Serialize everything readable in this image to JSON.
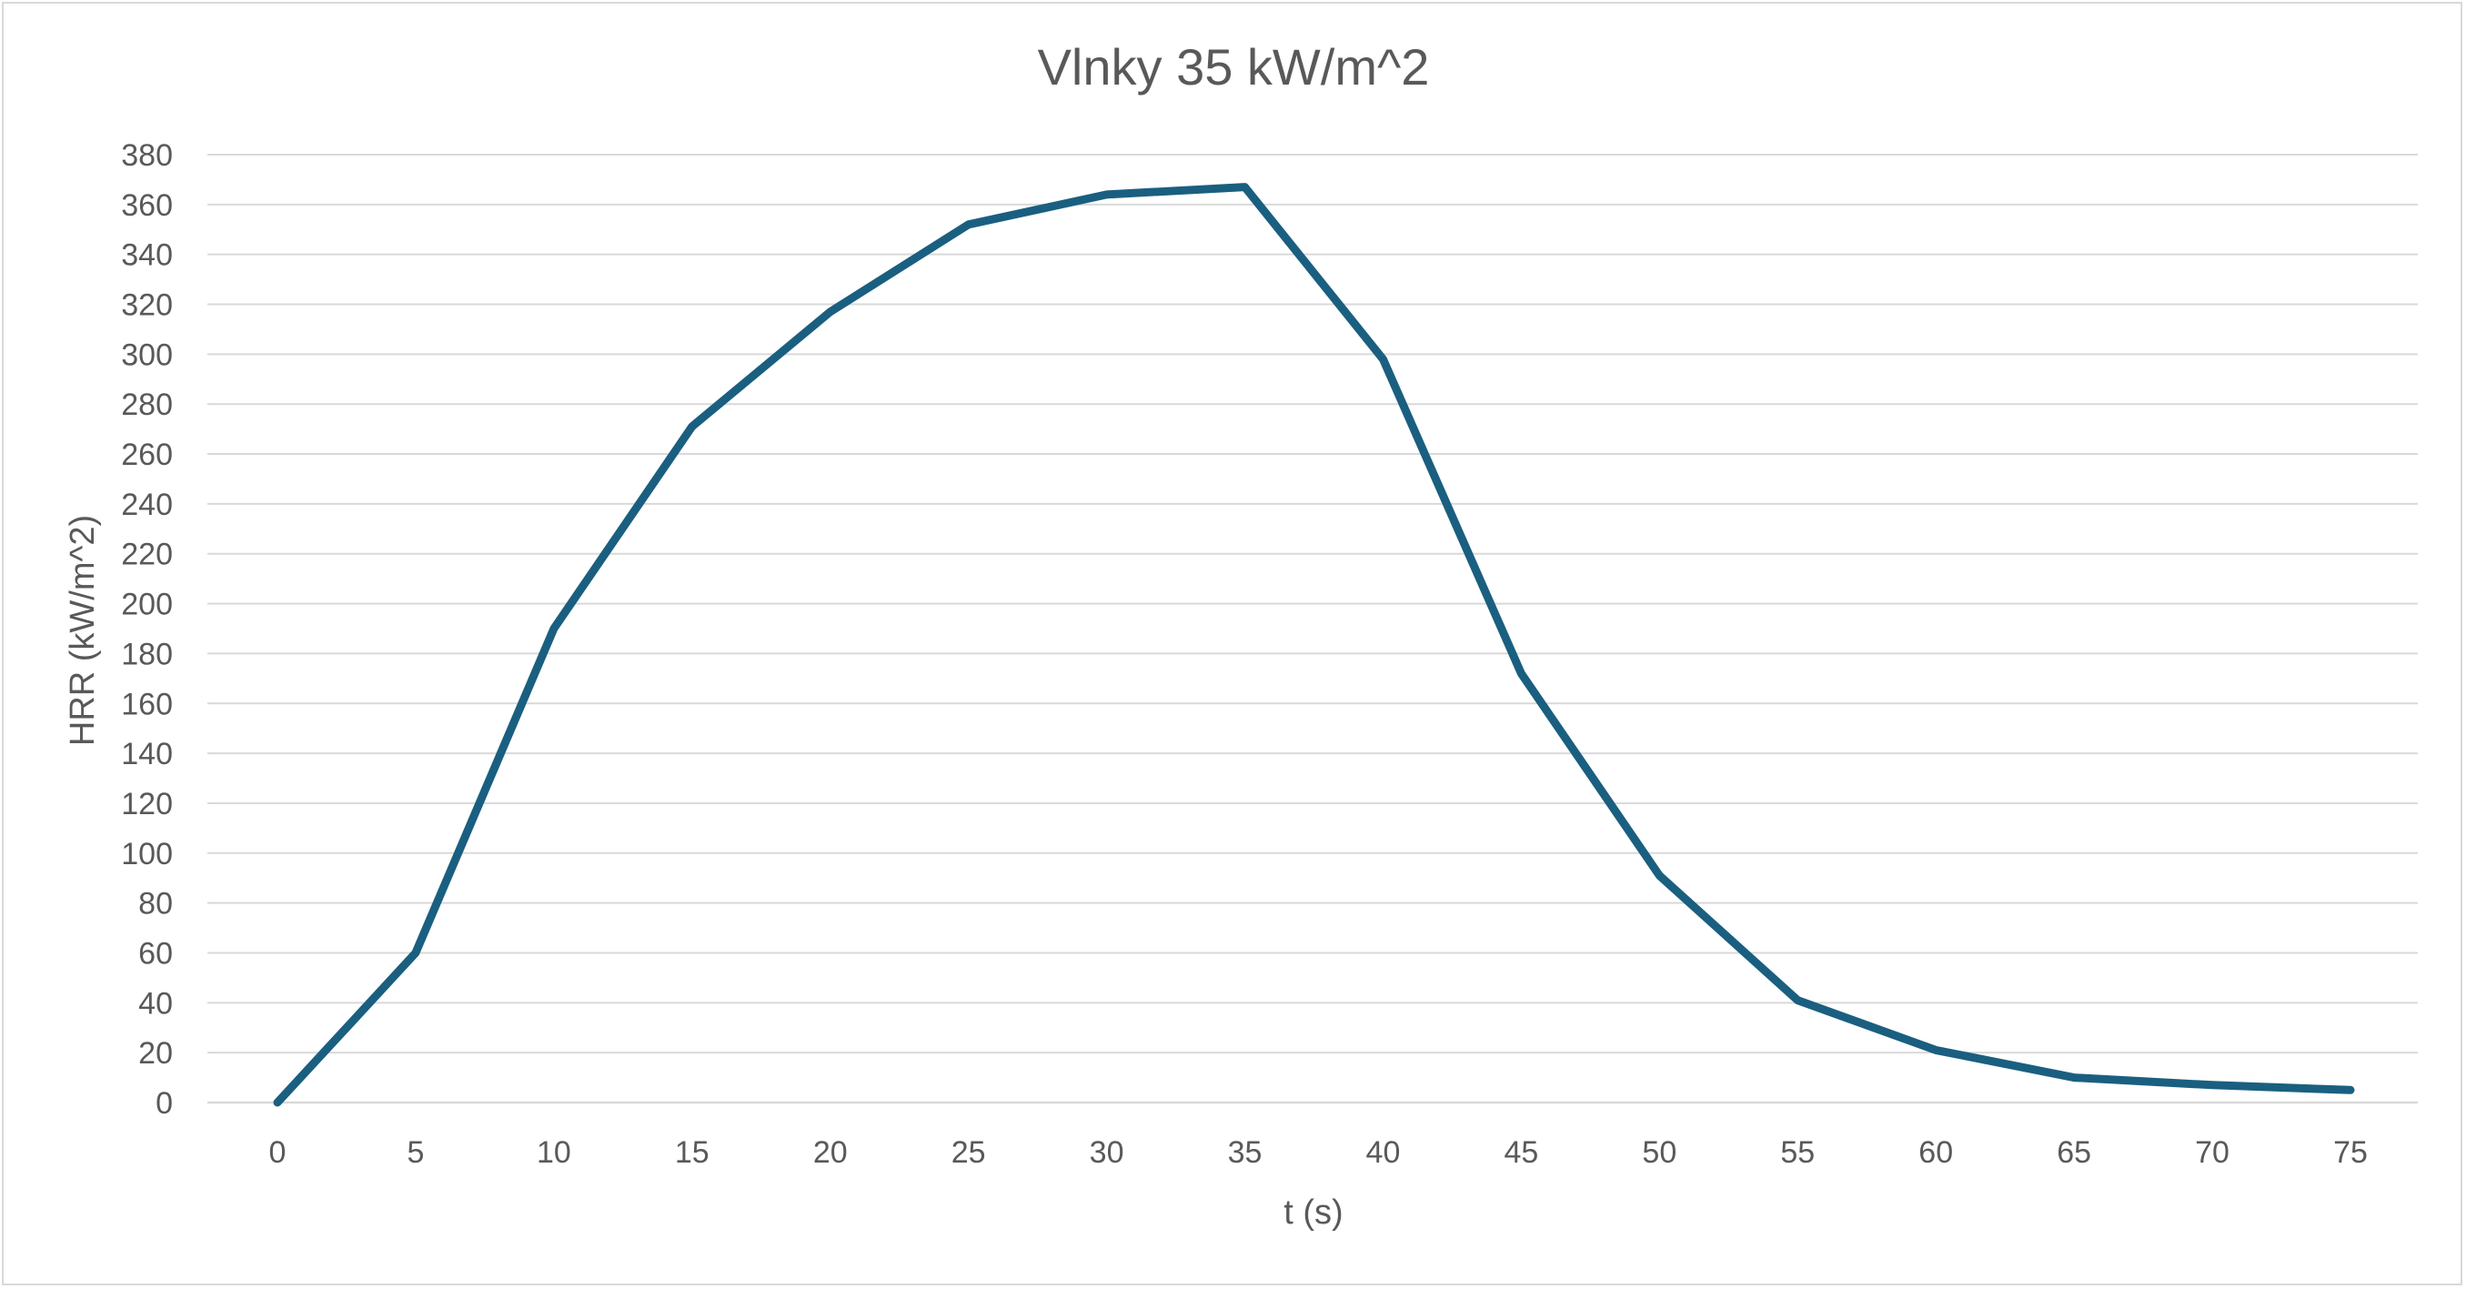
{
  "chart_data": {
    "type": "line",
    "title": "Vlnky 35 kW/m^2",
    "xlabel": "t (s)",
    "ylabel": "HRR (kW/m^2)",
    "x": [
      0,
      5,
      10,
      15,
      20,
      25,
      30,
      35,
      40,
      45,
      50,
      55,
      60,
      65,
      70,
      75
    ],
    "series": [
      {
        "values": [
          0,
          60,
          190,
          271,
          317,
          352,
          364,
          367,
          298,
          172,
          91,
          41,
          21,
          10,
          7,
          5
        ]
      }
    ],
    "xlim": [
      0,
      75
    ],
    "ylim": [
      0,
      380
    ],
    "y_tick_step": 20,
    "grid": "horizontal",
    "legend": "none",
    "colors": {
      "series": "#1a5f80"
    }
  }
}
